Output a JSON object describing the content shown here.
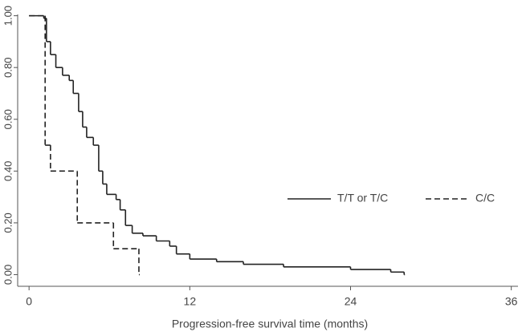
{
  "chart_data": {
    "type": "step",
    "xlabel": "Progression-free survival time (months)",
    "xlim": [
      -0.85,
      36.5
    ],
    "xticks": [
      0,
      12,
      24,
      36
    ],
    "ylim": [
      -0.045,
      1.005
    ],
    "yticks": [
      {
        "value": 0,
        "label": "0.00"
      },
      {
        "value": 0.2,
        "label": "0.20"
      },
      {
        "value": 0.4,
        "label": "0.40"
      },
      {
        "value": 0.6,
        "label": "0.60"
      },
      {
        "value": 0.8,
        "label": "0.80"
      },
      {
        "value": 1,
        "label": "1.00"
      }
    ],
    "legend": "right",
    "series": [
      {
        "name": "T/T or T/C",
        "color": "#222222",
        "dash": false,
        "x": [
          0,
          1.1,
          1.3,
          1.6,
          2,
          2.5,
          3,
          3.3,
          3.7,
          4,
          4.3,
          4.8,
          5.2,
          5.5,
          5.8,
          6.5,
          6.8,
          7.2,
          7.7,
          8.5,
          9.5,
          10.5,
          11,
          12,
          14,
          16,
          19,
          24,
          27,
          28
        ],
        "values": [
          1,
          0.99,
          0.9,
          0.85,
          0.8,
          0.77,
          0.75,
          0.7,
          0.63,
          0.57,
          0.53,
          0.5,
          0.4,
          0.35,
          0.31,
          0.29,
          0.25,
          0.19,
          0.16,
          0.15,
          0.13,
          0.11,
          0.08,
          0.06,
          0.05,
          0.04,
          0.03,
          0.02,
          0.01,
          0
        ]
      },
      {
        "name": "C/C",
        "color": "#222222",
        "dash": true,
        "x": [
          0,
          1.2,
          1.6,
          3.6,
          6.3,
          8.2
        ],
        "values": [
          1,
          0.5,
          0.4,
          0.2,
          0.1,
          0
        ]
      }
    ]
  }
}
